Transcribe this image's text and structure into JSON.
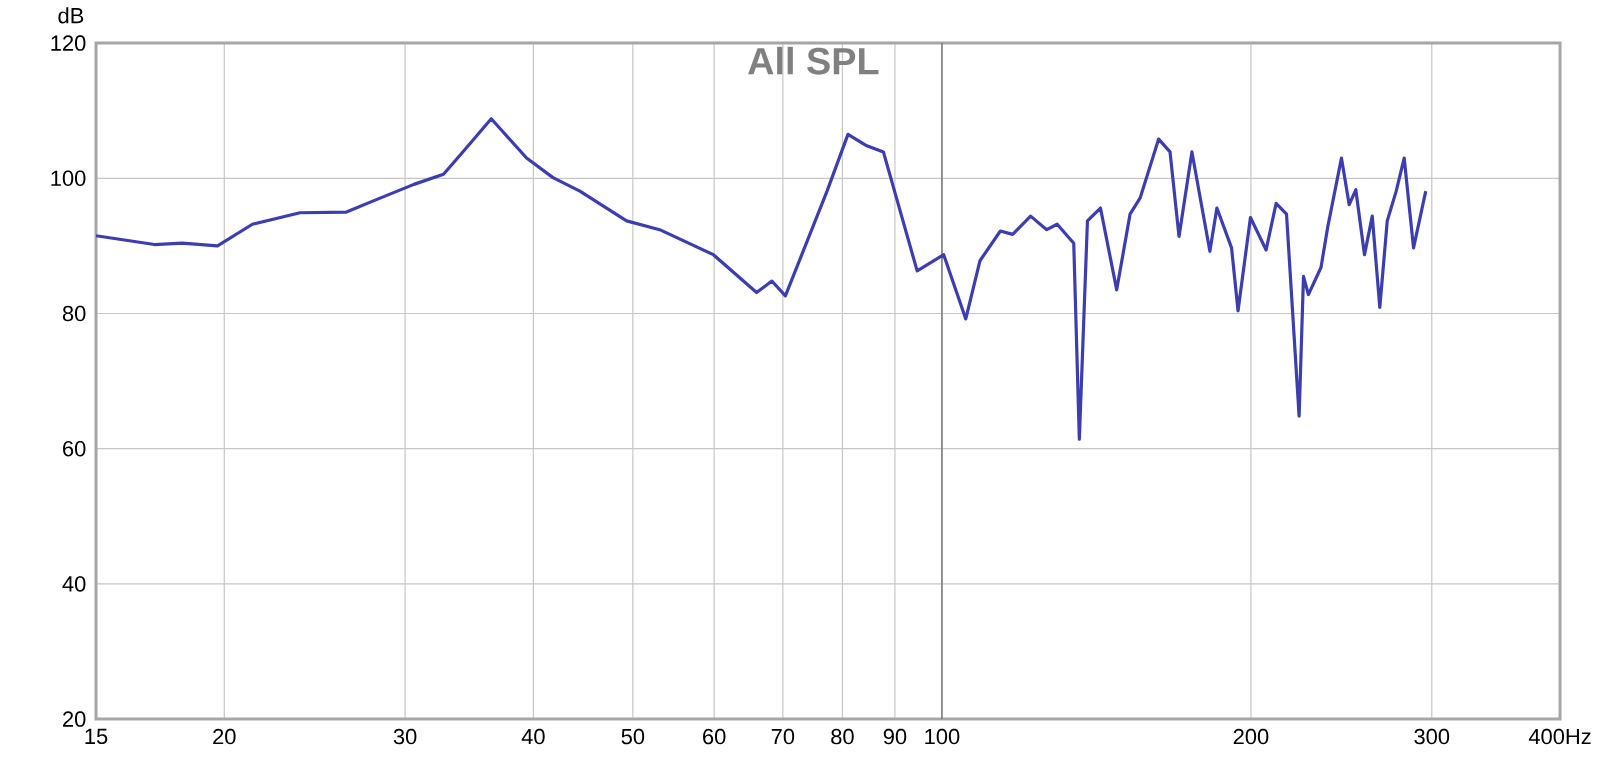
{
  "chart_data": {
    "type": "line",
    "title": "All SPL",
    "ylabel": "dB",
    "x": [
      15,
      17.1,
      18.2,
      19.7,
      21.3,
      23.7,
      26.3,
      28.4,
      30.6,
      32.7,
      34.2,
      36.4,
      39.4,
      41.8,
      44.4,
      49.3,
      53.1,
      59.9,
      66.0,
      68.3,
      70.4,
      77.3,
      81.0,
      84.5,
      87.7,
      94.6,
      100.4,
      105.5,
      108.9,
      114.0,
      117.2,
      122.0,
      126.5,
      129.5,
      134.4,
      136.1,
      138.6,
      142.7,
      148,
      152.5,
      156,
      162.6,
      166.8,
      170.2,
      175.2,
      182.4,
      185.3,
      191.5,
      194.3,
      199.8,
      206.9,
      211.6,
      216.6,
      222.8,
      225,
      227.5,
      234,
      237.5,
      245,
      249.3,
      253,
      258,
      262.5,
      267,
      271.5,
      277,
      282,
      288,
      296
    ],
    "series": [
      {
        "color": "#3b3db0",
        "values": [
          91.5,
          90.2,
          90.4,
          90.0,
          93.2,
          94.9,
          95.0,
          97.1,
          99.1,
          100.6,
          104.0,
          108.8,
          103.0,
          100.1,
          98.1,
          93.7,
          92.4,
          88.7,
          83.1,
          84.8,
          82.6,
          98.1,
          106.5,
          104.8,
          103.9,
          86.3,
          88.7,
          79.2,
          87.8,
          92.2,
          91.7,
          94.4,
          92.4,
          93.2,
          90.4,
          61.4,
          93.7,
          95.6,
          83.5,
          94.7,
          97.1,
          105.8,
          103.9,
          91.4,
          103.9,
          89.2,
          95.6,
          89.7,
          80.4,
          94.2,
          89.4,
          96.3,
          94.7,
          64.8,
          85.5,
          82.8,
          86.8,
          92.7,
          103.0,
          96.1,
          98.3,
          88.7,
          94.4,
          80.9,
          93.7,
          98.1,
          103.0,
          89.7,
          98.1
        ]
      }
    ],
    "log": "x",
    "xlim": [
      15,
      400
    ],
    "ylim": [
      20,
      120
    ],
    "xticks": [
      15,
      20,
      30,
      40,
      50,
      60,
      70,
      80,
      90,
      100,
      200,
      300,
      {
        "value": 400,
        "label": "400Hz"
      }
    ],
    "yticks": [
      20,
      40,
      60,
      80,
      100,
      120
    ],
    "grid": true,
    "line_style": "solid",
    "marker": "none",
    "ref_lines": [
      {
        "axis": "x",
        "value": 100,
        "color": "#7f7f7f"
      }
    ]
  }
}
